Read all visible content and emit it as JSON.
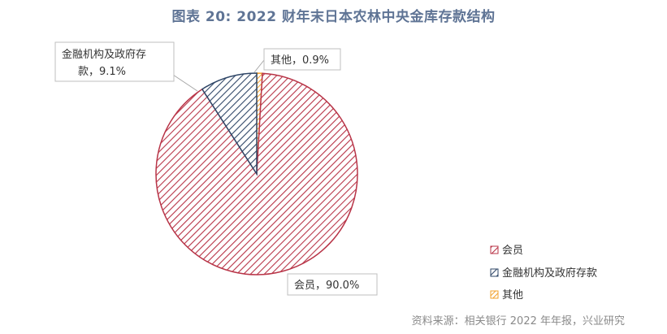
{
  "title": "图表 20: 2022 财年末日本农林中央金库存款结构",
  "source": "资料来源：相关银行 2022 年年报，兴业研究",
  "chart_data": {
    "type": "pie",
    "slices": [
      {
        "name": "会员",
        "value": 90.0,
        "value_label": "90.0%",
        "color": "#b83447",
        "label_text": "会员，90.0%"
      },
      {
        "name": "金融机构及政府存款",
        "value": 9.1,
        "value_label": "9.1%",
        "color": "#2e4566",
        "label_line1": "金融机构及政府存",
        "label_line2": "款，9.1%"
      },
      {
        "name": "其他",
        "value": 0.9,
        "value_label": "0.9%",
        "color": "#f2a12c",
        "label_text": "其他，0.9%"
      }
    ],
    "legend": {
      "placement": "bottom-right",
      "entries": [
        "会员",
        "金融机构及政府存款",
        "其他"
      ]
    },
    "pattern": "diagonal-hatch"
  }
}
